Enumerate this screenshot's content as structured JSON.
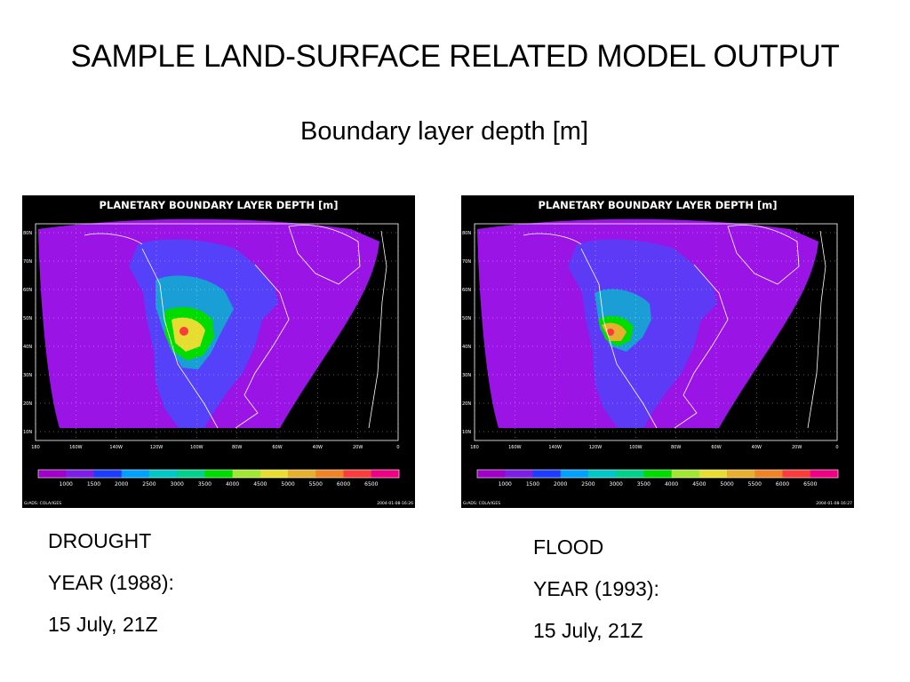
{
  "slide": {
    "title": "SAMPLE LAND-SURFACE RELATED MODEL OUTPUT",
    "subtitle": "Boundary layer depth [m]"
  },
  "maps": [
    {
      "panel_title": "PLANETARY BOUNDARY LAYER DEPTH [m]",
      "lat_labels": [
        "80N",
        "70N",
        "60N",
        "50N",
        "40N",
        "30N",
        "20N",
        "10N"
      ],
      "lon_labels": [
        "180",
        "160W",
        "140W",
        "120W",
        "100W",
        "80W",
        "60W",
        "40W",
        "20W",
        "0"
      ],
      "colorbar_values": [
        "1000",
        "1500",
        "2000",
        "2500",
        "3000",
        "3500",
        "4000",
        "4500",
        "5000",
        "5500",
        "6000",
        "6500"
      ],
      "colorbar_colors": [
        "#a000c8",
        "#7d1ee6",
        "#1e3cff",
        "#00a0ff",
        "#00c8c8",
        "#00d28c",
        "#00dc00",
        "#a0e632",
        "#e6dc32",
        "#e6af2d",
        "#f08228",
        "#fa3c3c",
        "#f00082"
      ],
      "footer_left": "GrADS: COLA/IGES",
      "footer_right": "2004-01-08-16:26",
      "caption": [
        "DROUGHT",
        "YEAR (1988):",
        "15 July, 21Z"
      ]
    },
    {
      "panel_title": "PLANETARY BOUNDARY LAYER DEPTH [m]",
      "lat_labels": [
        "80N",
        "70N",
        "60N",
        "50N",
        "40N",
        "30N",
        "20N",
        "10N"
      ],
      "lon_labels": [
        "180",
        "160W",
        "140W",
        "120W",
        "100W",
        "80W",
        "60W",
        "40W",
        "20W",
        "0"
      ],
      "colorbar_values": [
        "1000",
        "1500",
        "2000",
        "2500",
        "3000",
        "3500",
        "4000",
        "4500",
        "5000",
        "5500",
        "6000",
        "6500"
      ],
      "colorbar_colors": [
        "#a000c8",
        "#7d1ee6",
        "#1e3cff",
        "#00a0ff",
        "#00c8c8",
        "#00d28c",
        "#00dc00",
        "#a0e632",
        "#e6dc32",
        "#e6af2d",
        "#f08228",
        "#fa3c3c",
        "#f00082"
      ],
      "footer_left": "GrADS: COLA/IGES",
      "footer_right": "2004-01-08-16:27",
      "caption": [
        "FLOOD",
        "YEAR (1993):",
        "15 July, 21Z"
      ]
    }
  ]
}
